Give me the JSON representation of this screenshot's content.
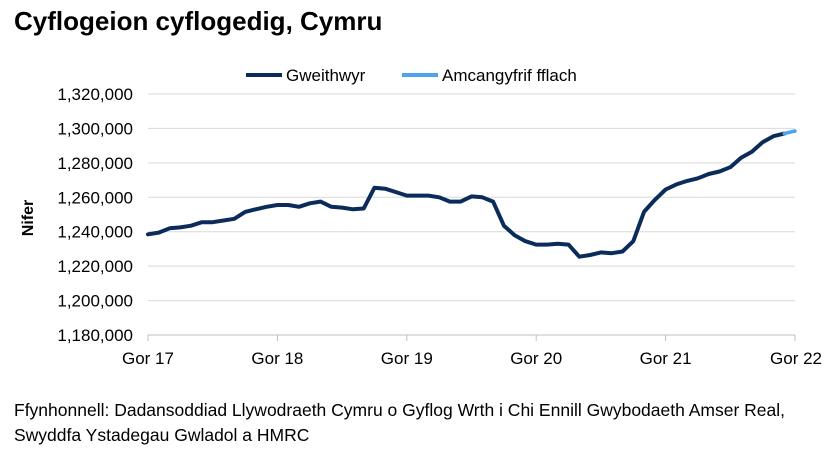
{
  "title": "Cyflogeion cyflogedig, Cymru",
  "source": "Ffynhonnell: Dadansoddiad Llywodraeth Cymru o Gyflog Wrth i Chi Ennill Gwybodaeth Amser Real, Swyddfa Ystadegau Gwladol a HMRC",
  "colors": {
    "actual": "#0b2c5b",
    "flash": "#4da3f0",
    "grid": "#d9d9d9",
    "axis": "#bfbfbf"
  },
  "chart_data": {
    "type": "line",
    "title": "Cyflogeion cyflogedig, Cymru",
    "xlabel": "",
    "ylabel": "Nifer",
    "ylim": [
      1180000,
      1320000
    ],
    "y_ticks": [
      1180000,
      1200000,
      1220000,
      1240000,
      1260000,
      1280000,
      1300000,
      1320000
    ],
    "y_tick_labels": [
      "1,180,000",
      "1,200,000",
      "1,220,000",
      "1,240,000",
      "1,260,000",
      "1,280,000",
      "1,300,000",
      "1,320,000"
    ],
    "x_tick_labels": [
      "Gor 17",
      "Gor 18",
      "Gor 19",
      "Gor 20",
      "Gor 21",
      "Gor 22"
    ],
    "grid": "horizontal",
    "legend_position": "top",
    "series": [
      {
        "name": "Gweithwyr",
        "color": "#0b2c5b",
        "x": [
          "Jul 2017",
          "Aug 2017",
          "Sep 2017",
          "Oct 2017",
          "Nov 2017",
          "Dec 2017",
          "Jan 2018",
          "Feb 2018",
          "Mar 2018",
          "Apr 2018",
          "May 2018",
          "Jun 2018",
          "Jul 2018",
          "Aug 2018",
          "Sep 2018",
          "Oct 2018",
          "Nov 2018",
          "Dec 2018",
          "Jan 2019",
          "Feb 2019",
          "Mar 2019",
          "Apr 2019",
          "May 2019",
          "Jun 2019",
          "Jul 2019",
          "Aug 2019",
          "Sep 2019",
          "Oct 2019",
          "Nov 2019",
          "Dec 2019",
          "Jan 2020",
          "Feb 2020",
          "Mar 2020",
          "Apr 2020",
          "May 2020",
          "Jun 2020",
          "Jul 2020",
          "Aug 2020",
          "Sep 2020",
          "Oct 2020",
          "Nov 2020",
          "Dec 2020",
          "Jan 2021",
          "Feb 2021",
          "Mar 2021",
          "Apr 2021",
          "May 2021",
          "Jun 2021",
          "Jul 2021",
          "Aug 2021",
          "Sep 2021",
          "Oct 2021",
          "Nov 2021",
          "Dec 2021",
          "Jan 2022",
          "Feb 2022",
          "Mar 2022",
          "Apr 2022",
          "May 2022",
          "Jun 2022"
        ],
        "values": [
          1238500,
          1239500,
          1242000,
          1242500,
          1243500,
          1245500,
          1245500,
          1246500,
          1247500,
          1251500,
          1253000,
          1254500,
          1255500,
          1255500,
          1254500,
          1256500,
          1257500,
          1254500,
          1254000,
          1253000,
          1253500,
          1265500,
          1265000,
          1263000,
          1261000,
          1261000,
          1261000,
          1260000,
          1257500,
          1257500,
          1260500,
          1260000,
          1257500,
          1243500,
          1238000,
          1234500,
          1232500,
          1232500,
          1233000,
          1232500,
          1225500,
          1226500,
          1228000,
          1227500,
          1228500,
          1234500,
          1251500,
          1258500,
          1264500,
          1267500,
          1269500,
          1271000,
          1273500,
          1275000,
          1277500,
          1283000,
          1286500,
          1292000,
          1295500,
          1297000
        ]
      },
      {
        "name": "Amcangyfrif fflach",
        "color": "#4da3f0",
        "x": [
          "Jun 2022",
          "Jul 2022"
        ],
        "values": [
          1297000,
          1298500
        ]
      }
    ]
  }
}
